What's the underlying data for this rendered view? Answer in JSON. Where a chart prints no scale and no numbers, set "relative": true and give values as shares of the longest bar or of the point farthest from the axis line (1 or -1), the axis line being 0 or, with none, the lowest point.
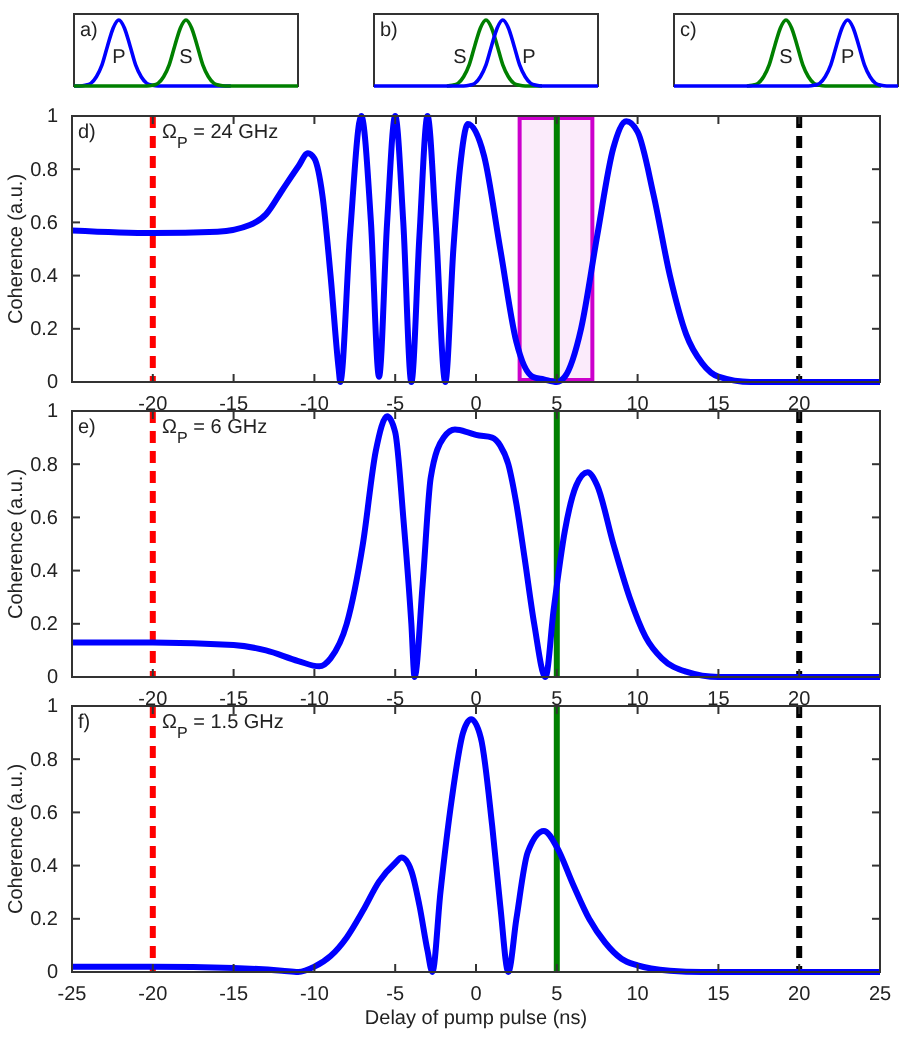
{
  "chart_data": [
    {
      "type": "line",
      "relative": true,
      "annotations": [
        "a)"
      ],
      "categories": [
        null,
        null,
        null,
        null,
        null,
        null,
        null,
        null,
        null,
        null,
        null,
        null,
        null,
        null,
        null,
        null,
        null,
        null,
        null,
        null,
        null,
        null,
        null,
        null,
        null,
        null,
        null,
        null,
        null,
        null,
        null,
        null,
        null,
        null,
        null,
        null,
        null,
        null,
        null,
        null,
        null
      ],
      "series": [
        {
          "name": "P",
          "color": "#0000ff",
          "values": [
            0,
            0,
            0.01,
            0.04,
            0.14,
            0.32,
            0.61,
            0.88,
            1,
            0.88,
            0.61,
            0.32,
            0.14,
            0.04,
            0.01,
            0,
            0,
            0,
            0,
            0,
            0,
            0,
            0,
            0,
            0,
            0,
            0,
            0,
            0,
            null,
            null,
            null,
            null,
            null,
            null,
            null,
            null,
            null,
            null,
            null,
            null
          ]
        },
        {
          "name": "S",
          "color": "#008000",
          "values": [
            0,
            0,
            0,
            0,
            0,
            0,
            0,
            0,
            0,
            0,
            0,
            0,
            0,
            0,
            0.01,
            0.04,
            0.14,
            0.32,
            0.61,
            0.88,
            1,
            0.88,
            0.61,
            0.32,
            0.14,
            0.04,
            0.01,
            0,
            0,
            0,
            0,
            0,
            0,
            0,
            0,
            0,
            0,
            0,
            0,
            0,
            0
          ]
        }
      ]
    },
    {
      "type": "line",
      "relative": true,
      "annotations": [
        "b)"
      ],
      "categories": [
        null,
        null,
        null,
        null,
        null,
        null,
        null,
        null,
        null,
        null,
        null,
        null,
        null,
        null,
        null,
        null,
        null,
        null,
        null,
        null,
        null,
        null,
        null,
        null,
        null,
        null,
        null,
        null,
        null,
        null,
        null,
        null,
        null,
        null,
        null,
        null,
        null,
        null,
        null,
        null,
        null
      ],
      "series": [
        {
          "name": "S",
          "color": "#008000",
          "values": [
            null,
            null,
            null,
            null,
            null,
            null,
            null,
            null,
            null,
            null,
            null,
            null,
            null,
            0,
            0.01,
            0.04,
            0.14,
            0.32,
            0.61,
            0.88,
            1,
            0.88,
            0.61,
            0.32,
            0.14,
            0.04,
            0.01,
            0,
            0,
            0,
            0,
            null,
            null,
            null,
            null,
            null,
            null,
            null,
            null,
            null,
            null
          ]
        },
        {
          "name": "P",
          "color": "#0000ff",
          "values": [
            0,
            0,
            0,
            0,
            0,
            0,
            0,
            0,
            0,
            0,
            0,
            0,
            0,
            0,
            0,
            0,
            0,
            0.01,
            0.04,
            0.14,
            0.32,
            0.61,
            0.88,
            1,
            0.88,
            0.61,
            0.32,
            0.14,
            0.04,
            0.01,
            0,
            0,
            0,
            0,
            0,
            0,
            0,
            0,
            0,
            0,
            0
          ]
        }
      ]
    },
    {
      "type": "line",
      "relative": true,
      "annotations": [
        "c)"
      ],
      "categories": [
        null,
        null,
        null,
        null,
        null,
        null,
        null,
        null,
        null,
        null,
        null,
        null,
        null,
        null,
        null,
        null,
        null,
        null,
        null,
        null,
        null,
        null,
        null,
        null,
        null,
        null,
        null,
        null,
        null,
        null,
        null,
        null,
        null,
        null,
        null,
        null,
        null,
        null,
        null,
        null,
        null
      ],
      "series": [
        {
          "name": "S",
          "color": "#008000",
          "values": [
            null,
            null,
            null,
            null,
            null,
            null,
            null,
            null,
            null,
            null,
            null,
            null,
            null,
            0,
            0.01,
            0.04,
            0.14,
            0.32,
            0.61,
            0.88,
            1,
            0.88,
            0.61,
            0.32,
            0.14,
            0.04,
            0.01,
            0,
            0,
            0,
            0,
            0,
            0,
            0,
            0,
            0,
            0,
            0,
            null,
            null,
            null
          ]
        },
        {
          "name": "P",
          "color": "#0000ff",
          "values": [
            0,
            0,
            0,
            0,
            0,
            0,
            0,
            0,
            0,
            0,
            0,
            0,
            0,
            0,
            0,
            0,
            0,
            0,
            0,
            0,
            0,
            0,
            0,
            0,
            0,
            0.01,
            0.04,
            0.14,
            0.32,
            0.61,
            0.88,
            1,
            0.88,
            0.61,
            0.32,
            0.14,
            0.04,
            0.01,
            0,
            0,
            0
          ]
        }
      ]
    },
    {
      "type": "line",
      "ylabel": "Coherence (a.u.)",
      "annotations": [
        "d)",
        "Ω$_{P}$ = 24 GHz"
      ],
      "xlim": [
        -25,
        25
      ],
      "xticks": [
        -20,
        -15,
        -10,
        -5,
        0,
        5,
        10,
        15,
        20
      ],
      "ylim": [
        0,
        1
      ],
      "yticks": [
        0,
        0.2,
        0.4,
        0.6,
        0.8,
        1
      ],
      "ref_lines": [
        {
          "axis": "x",
          "value": -20,
          "color": "#ff0000",
          "line_style": "dashed"
        },
        {
          "axis": "x",
          "value": 5,
          "color": "#008000",
          "line_style": "solid"
        },
        {
          "axis": "x",
          "value": 20,
          "color": "#000000",
          "line_style": "dashed"
        }
      ],
      "bands": [
        {
          "axis": "x",
          "from": 2.7,
          "to": 7.2,
          "color": "#cc00cc"
        }
      ],
      "series": [
        {
          "color": "#0000ff",
          "x": [
            -25,
            -20,
            -16,
            -14,
            -13,
            -12,
            -11,
            -10.4,
            -10,
            -9.5,
            -9,
            -8.5,
            -8.4,
            -7.8,
            -7.1,
            -6.5,
            -6,
            -5.5,
            -5,
            -4.5,
            -4,
            -3.5,
            -3,
            -2.5,
            -1.9,
            -1.4,
            -1,
            -0.5,
            0.5,
            1.5,
            2.5,
            3.5,
            4.2,
            5,
            5.5,
            6.5,
            7.5,
            8.5,
            9.3,
            10,
            11,
            12,
            13,
            14,
            15,
            17,
            25
          ],
          "values": [
            0.57,
            0.56,
            0.565,
            0.59,
            0.63,
            0.72,
            0.81,
            0.86,
            0.84,
            0.7,
            0.4,
            0.05,
            0,
            0.55,
            1,
            0.6,
            0.02,
            0.6,
            1,
            0.6,
            0,
            0.55,
            1,
            0.6,
            0,
            0.5,
            0.8,
            0.97,
            0.85,
            0.5,
            0.15,
            0.02,
            0.01,
            0,
            0.02,
            0.2,
            0.55,
            0.88,
            0.98,
            0.94,
            0.7,
            0.4,
            0.18,
            0.07,
            0.02,
            0,
            0
          ]
        }
      ]
    },
    {
      "type": "line",
      "ylabel": "Coherence (a.u.)",
      "annotations": [
        "e)",
        "Ω$_{P}$ = 6 GHz"
      ],
      "xlim": [
        -25,
        25
      ],
      "xticks": [
        -20,
        -15,
        -10,
        -5,
        0,
        5,
        10,
        15,
        20
      ],
      "ylim": [
        0,
        1
      ],
      "yticks": [
        0,
        0.2,
        0.4,
        0.6,
        0.8,
        1
      ],
      "ref_lines": [
        {
          "axis": "x",
          "value": -20,
          "color": "#ff0000",
          "line_style": "dashed"
        },
        {
          "axis": "x",
          "value": 5,
          "color": "#008000",
          "line_style": "solid"
        },
        {
          "axis": "x",
          "value": 20,
          "color": "#000000",
          "line_style": "dashed"
        }
      ],
      "series": [
        {
          "color": "#0000ff",
          "x": [
            -25,
            -20,
            -15,
            -13,
            -11,
            -9.7,
            -9,
            -8,
            -7,
            -6.2,
            -5.5,
            -5,
            -4.5,
            -4,
            -3.8,
            -3.3,
            -2.8,
            -2,
            -1.3,
            -0.5,
            0,
            1,
            1.5,
            2,
            2.5,
            3,
            3.6,
            4.3,
            4.8,
            5.5,
            6.2,
            6.9,
            7.5,
            8.5,
            9.5,
            10.5,
            11.5,
            13,
            15,
            25
          ],
          "values": [
            0.13,
            0.13,
            0.12,
            0.1,
            0.06,
            0.04,
            0.07,
            0.2,
            0.5,
            0.85,
            0.98,
            0.92,
            0.6,
            0.2,
            0,
            0.35,
            0.75,
            0.9,
            0.93,
            0.92,
            0.91,
            0.9,
            0.87,
            0.8,
            0.65,
            0.45,
            0.2,
            0,
            0.25,
            0.55,
            0.72,
            0.77,
            0.72,
            0.5,
            0.3,
            0.15,
            0.07,
            0.02,
            0,
            0
          ]
        }
      ]
    },
    {
      "type": "line",
      "ylabel": "Coherence (a.u.)",
      "xlabel": "Delay of pump pulse (ns)",
      "annotations": [
        "f)",
        "Ω$_{P}$ = 1.5 GHz"
      ],
      "xlim": [
        -25,
        25
      ],
      "xticks": [
        -25,
        -20,
        -15,
        -10,
        -5,
        0,
        5,
        10,
        15,
        20,
        25
      ],
      "ylim": [
        0,
        1
      ],
      "yticks": [
        0,
        0.2,
        0.4,
        0.6,
        0.8,
        1
      ],
      "ref_lines": [
        {
          "axis": "x",
          "value": -20,
          "color": "#ff0000",
          "line_style": "dashed"
        },
        {
          "axis": "x",
          "value": 5,
          "color": "#008000",
          "line_style": "solid"
        },
        {
          "axis": "x",
          "value": 20,
          "color": "#000000",
          "line_style": "dashed"
        }
      ],
      "series": [
        {
          "color": "#0000ff",
          "x": [
            -25,
            -20,
            -15,
            -12,
            -11,
            -10,
            -9,
            -8,
            -7,
            -6,
            -5,
            -4.6,
            -4,
            -3.5,
            -3,
            -2.7,
            -2.2,
            -1.5,
            -0.8,
            -0.3,
            0.3,
            1,
            1.5,
            2,
            2.5,
            3.2,
            4.2,
            5,
            6,
            7,
            8,
            9,
            10,
            12,
            14,
            25
          ],
          "values": [
            0.02,
            0.02,
            0.015,
            0.005,
            0,
            0.02,
            0.06,
            0.13,
            0.23,
            0.34,
            0.41,
            0.43,
            0.38,
            0.25,
            0.08,
            0,
            0.3,
            0.65,
            0.9,
            0.95,
            0.88,
            0.55,
            0.25,
            0,
            0.2,
            0.45,
            0.53,
            0.47,
            0.33,
            0.2,
            0.11,
            0.05,
            0.025,
            0.005,
            0,
            0
          ]
        }
      ]
    }
  ]
}
